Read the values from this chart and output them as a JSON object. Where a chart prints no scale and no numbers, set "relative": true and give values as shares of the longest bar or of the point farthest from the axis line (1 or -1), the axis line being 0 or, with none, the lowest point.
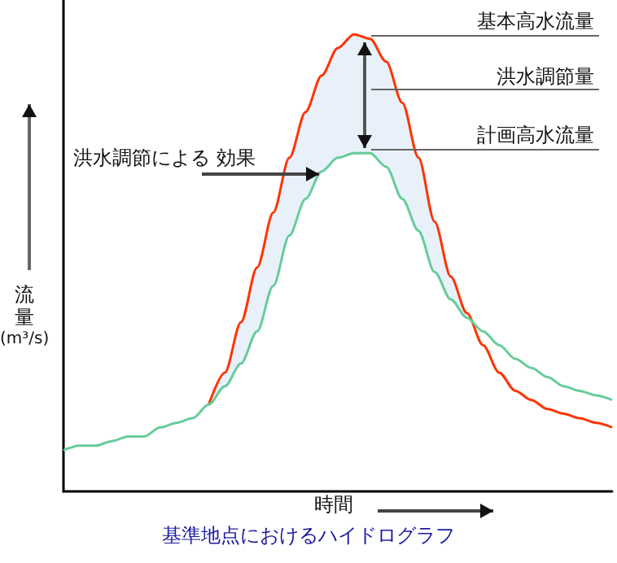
{
  "chart_data": {
    "type": "line",
    "relative": true,
    "title": "基準地点におけるハイドログラフ",
    "xlabel": "時間",
    "ylabel": "流量(m³/s)",
    "categories": [
      null,
      null,
      null,
      null,
      null,
      null,
      null,
      null,
      null,
      null,
      null,
      null,
      null,
      null,
      null,
      null,
      null,
      null,
      null,
      null,
      null,
      null,
      null,
      null,
      null,
      null,
      null,
      null,
      null,
      null,
      null,
      null,
      null,
      null,
      null
    ],
    "series": [
      {
        "color": "#ff3300",
        "values": [
          null,
          null,
          null,
          null,
          null,
          null,
          null,
          null,
          null,
          0.19,
          0.26,
          0.37,
          0.49,
          0.61,
          0.73,
          0.83,
          0.91,
          0.97,
          1,
          0.99,
          0.94,
          0.85,
          0.73,
          0.59,
          0.47,
          0.39,
          0.32,
          0.26,
          0.22,
          0.2,
          0.18,
          0.17,
          0.16,
          0.15,
          0.14
        ],
        "lower": [
          null,
          null,
          null,
          null,
          null,
          null,
          null,
          null,
          null,
          0.19,
          0.23,
          0.28,
          0.35,
          0.45,
          0.56,
          0.64,
          0.7,
          0.73,
          0.74,
          0.74,
          0.71,
          0.64,
          0.57,
          0.48,
          0.42,
          0.38,
          null,
          null,
          null,
          null,
          null,
          null,
          null,
          null,
          null
        ],
        "upper": [
          null,
          null,
          null,
          null,
          null,
          null,
          null,
          null,
          null,
          0.19,
          0.26,
          0.37,
          0.49,
          0.61,
          0.73,
          0.83,
          0.91,
          0.97,
          1,
          0.99,
          0.94,
          0.85,
          0.73,
          0.59,
          0.47,
          0.39,
          null,
          null,
          null,
          null,
          null,
          null,
          null,
          null,
          null
        ]
      },
      {
        "color": "#66cc99",
        "values": [
          0.09,
          0.1,
          0.1,
          0.11,
          0.12,
          0.12,
          0.14,
          0.15,
          0.16,
          0.19,
          0.23,
          0.28,
          0.35,
          0.45,
          0.56,
          0.64,
          0.7,
          0.73,
          0.74,
          0.74,
          0.71,
          0.64,
          0.57,
          0.48,
          0.42,
          0.38,
          0.35,
          0.32,
          0.29,
          0.27,
          0.25,
          0.23,
          0.22,
          0.21,
          0.2
        ]
      }
    ],
    "annotations": [
      "基本高水流量",
      "洪水調節量",
      "計画高水流量",
      "洪水調節による 効果"
    ],
    "marker": "none"
  }
}
